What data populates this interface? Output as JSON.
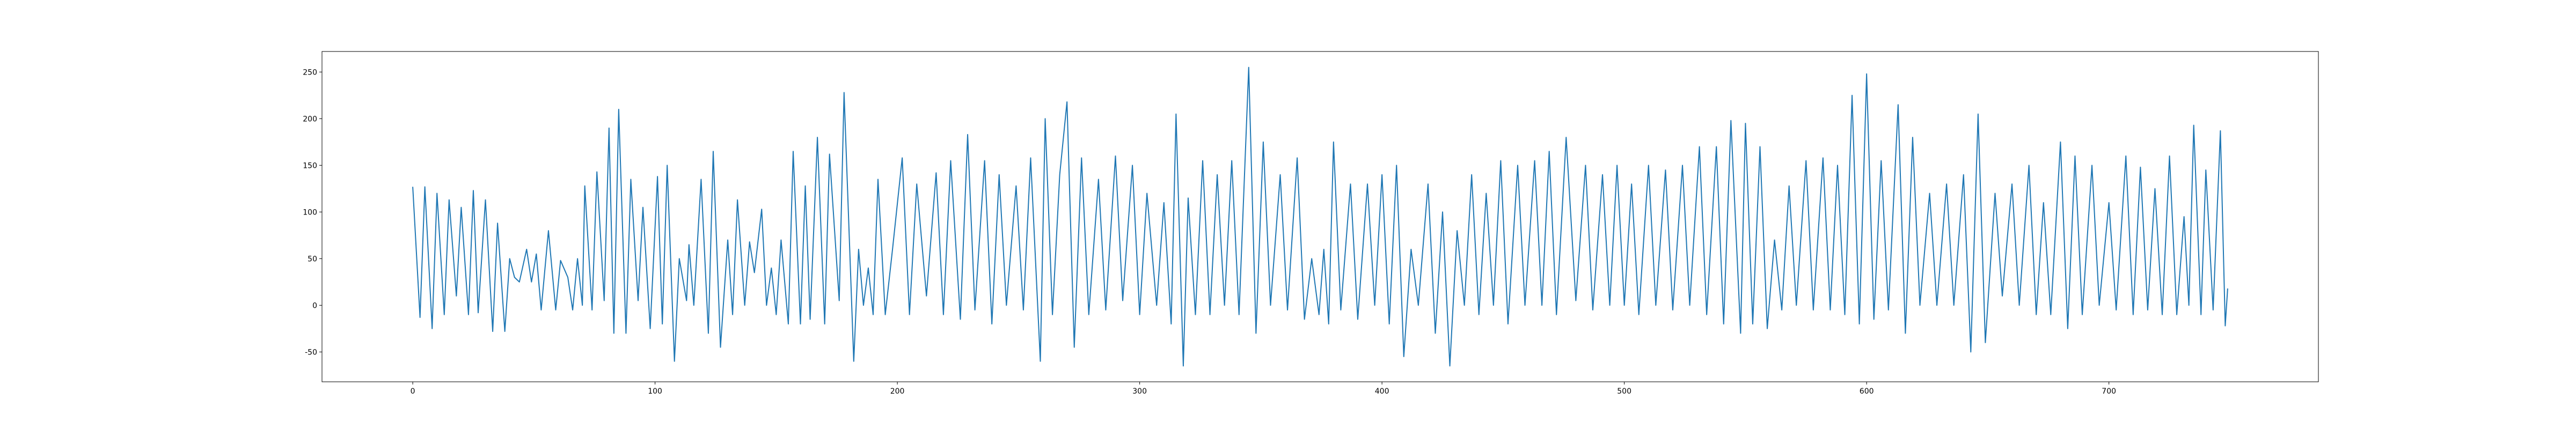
{
  "chart_data": {
    "type": "line",
    "x": [
      0,
      3,
      5,
      8,
      10,
      13,
      15,
      18,
      20,
      23,
      25,
      27,
      30,
      33,
      35,
      38,
      40,
      42,
      44,
      47,
      49,
      51,
      53,
      56,
      59,
      61,
      64,
      66,
      68,
      70,
      71,
      74,
      76,
      79,
      81,
      83,
      85,
      88,
      90,
      93,
      95,
      98,
      101,
      103,
      105,
      108,
      110,
      113,
      114,
      116,
      119,
      122,
      124,
      127,
      130,
      132,
      134,
      137,
      139,
      141,
      144,
      146,
      148,
      150,
      152,
      155,
      157,
      160,
      162,
      164,
      167,
      170,
      172,
      176,
      178,
      182,
      184,
      186,
      188,
      190,
      192,
      195,
      198,
      202,
      205,
      208,
      212,
      216,
      219,
      222,
      226,
      229,
      232,
      236,
      239,
      242,
      245,
      249,
      252,
      255,
      259,
      261,
      264,
      267,
      270,
      273,
      276,
      279,
      283,
      286,
      290,
      293,
      297,
      300,
      303,
      307,
      310,
      313,
      315,
      318,
      320,
      323,
      326,
      329,
      332,
      335,
      338,
      341,
      345,
      348,
      351,
      354,
      358,
      361,
      365,
      368,
      371,
      374,
      376,
      378,
      380,
      383,
      387,
      390,
      394,
      397,
      400,
      403,
      406,
      409,
      412,
      415,
      419,
      422,
      425,
      428,
      431,
      434,
      437,
      440,
      443,
      446,
      449,
      452,
      456,
      459,
      463,
      466,
      469,
      472,
      476,
      480,
      484,
      487,
      491,
      494,
      497,
      500,
      503,
      506,
      510,
      513,
      517,
      520,
      524,
      527,
      531,
      534,
      538,
      541,
      544,
      548,
      550,
      553,
      556,
      559,
      562,
      565,
      568,
      571,
      575,
      578,
      582,
      585,
      588,
      591,
      594,
      597,
      600,
      603,
      606,
      609,
      613,
      616,
      619,
      622,
      626,
      629,
      633,
      636,
      640,
      643,
      646,
      649,
      653,
      656,
      660,
      663,
      667,
      670,
      673,
      676,
      680,
      683,
      686,
      689,
      693,
      696,
      700,
      703,
      707,
      710,
      713,
      716,
      719,
      722,
      725,
      728,
      731,
      733,
      735,
      738,
      740,
      743,
      746,
      748,
      749
    ],
    "series": [
      {
        "color": "#1f77b4",
        "values": [
          127,
          -13,
          127,
          -25,
          120,
          -10,
          113,
          10,
          105,
          -10,
          123,
          -8,
          113,
          -28,
          88,
          -28,
          50,
          30,
          25,
          60,
          25,
          55,
          -5,
          80,
          -5,
          48,
          30,
          -5,
          50,
          0,
          128,
          -5,
          143,
          5,
          190,
          -30,
          210,
          -30,
          135,
          5,
          105,
          -25,
          138,
          -20,
          150,
          -60,
          50,
          5,
          65,
          0,
          135,
          -30,
          165,
          -45,
          70,
          -10,
          113,
          0,
          68,
          35,
          103,
          0,
          40,
          -10,
          70,
          -20,
          165,
          -20,
          128,
          -15,
          180,
          -20,
          162,
          5,
          228,
          -60,
          60,
          0,
          40,
          -10,
          135,
          -10,
          60,
          158,
          -10,
          130,
          10,
          142,
          -10,
          155,
          -15,
          183,
          -5,
          155,
          -20,
          140,
          0,
          128,
          -5,
          158,
          -60,
          200,
          -10,
          140,
          218,
          -45,
          158,
          -10,
          135,
          -5,
          160,
          5,
          150,
          -10,
          120,
          0,
          110,
          -20,
          205,
          -65,
          115,
          -10,
          155,
          -10,
          140,
          0,
          155,
          -10,
          255,
          -30,
          175,
          0,
          140,
          -5,
          158,
          -15,
          50,
          -10,
          60,
          -20,
          175,
          -5,
          130,
          -15,
          130,
          0,
          140,
          -20,
          150,
          -55,
          60,
          0,
          130,
          -30,
          100,
          -65,
          80,
          0,
          140,
          -10,
          120,
          0,
          155,
          -20,
          150,
          0,
          155,
          0,
          165,
          -10,
          180,
          5,
          150,
          -5,
          140,
          0,
          150,
          0,
          130,
          -10,
          150,
          0,
          145,
          -5,
          150,
          0,
          170,
          -10,
          170,
          -20,
          198,
          -30,
          195,
          -20,
          170,
          -25,
          70,
          -5,
          128,
          0,
          155,
          -5,
          158,
          -5,
          150,
          -10,
          225,
          -20,
          248,
          -15,
          155,
          -5,
          215,
          -30,
          180,
          0,
          120,
          0,
          130,
          0,
          140,
          -50,
          205,
          -40,
          120,
          10,
          130,
          0,
          150,
          -10,
          110,
          -10,
          175,
          -25,
          160,
          -10,
          150,
          0,
          110,
          -5,
          160,
          -10,
          148,
          -5,
          125,
          -10,
          160,
          -10,
          95,
          0,
          193,
          -10,
          145,
          -5,
          187,
          -22,
          18
        ]
      }
    ],
    "xlim": [
      -37.45,
      786.45
    ],
    "ylim": [
      -82,
      272
    ],
    "xticks": [
      0,
      100,
      200,
      300,
      400,
      500,
      600,
      700
    ],
    "yticks": [
      -50,
      0,
      50,
      100,
      150,
      200,
      250
    ]
  }
}
